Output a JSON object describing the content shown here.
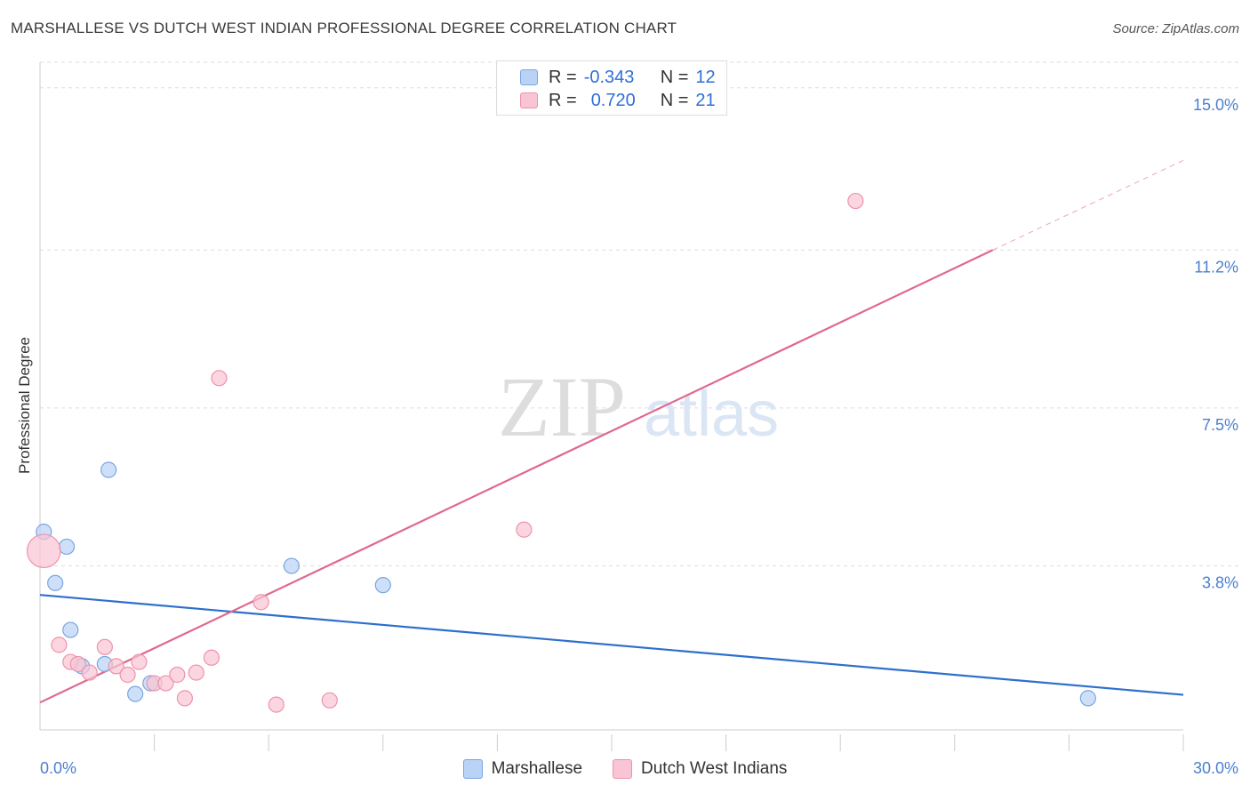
{
  "title": "MARSHALLESE VS DUTCH WEST INDIAN PROFESSIONAL DEGREE CORRELATION CHART",
  "source": "Source: ZipAtlas.com",
  "watermark": {
    "zip": "ZIP",
    "atlas": "atlas"
  },
  "colors": {
    "blue_fill": "#b9d3f6",
    "blue_stroke": "#7aa5e0",
    "blue_line": "#2e6fcc",
    "pink_fill": "#f9c4d3",
    "pink_stroke": "#ee92ad",
    "pink_line": "#e0688f",
    "tick_label": "#4a7fd0"
  },
  "legend_top": {
    "rows": [
      {
        "r_label": "R =",
        "r_value": "-0.343",
        "n_label": "N =",
        "n_value": "12"
      },
      {
        "r_label": "R =",
        "r_value": "0.720",
        "n_label": "N =",
        "n_value": "21"
      }
    ]
  },
  "chart_data": {
    "type": "scatter",
    "title": "MARSHALLESE VS DUTCH WEST INDIAN PROFESSIONAL DEGREE CORRELATION CHART",
    "xlabel": "",
    "ylabel": "Professional Degree",
    "xlim": [
      0,
      30
    ],
    "ylim": [
      0,
      15.6
    ],
    "x_tick_labels": [
      {
        "value": 0,
        "label": "0.0%"
      },
      {
        "value": 30,
        "label": "30.0%"
      }
    ],
    "y_tick_labels": [
      {
        "value": 3.8,
        "label": "3.8%"
      },
      {
        "value": 7.5,
        "label": "7.5%"
      },
      {
        "value": 11.2,
        "label": "11.2%"
      },
      {
        "value": 15.0,
        "label": "15.0%"
      }
    ],
    "series": [
      {
        "name": "Marshallese",
        "color": "blue",
        "points": [
          {
            "x": 0.1,
            "y": 4.6,
            "r": 1
          },
          {
            "x": 0.7,
            "y": 4.25,
            "r": 1
          },
          {
            "x": 0.4,
            "y": 3.4,
            "r": 1
          },
          {
            "x": 1.8,
            "y": 6.05,
            "r": 1
          },
          {
            "x": 0.8,
            "y": 2.3,
            "r": 1
          },
          {
            "x": 1.7,
            "y": 1.5,
            "r": 1
          },
          {
            "x": 1.1,
            "y": 1.45,
            "r": 1
          },
          {
            "x": 2.5,
            "y": 0.8,
            "r": 1
          },
          {
            "x": 2.9,
            "y": 1.05,
            "r": 1
          },
          {
            "x": 6.6,
            "y": 3.8,
            "r": 1
          },
          {
            "x": 9.0,
            "y": 3.35,
            "r": 1
          },
          {
            "x": 27.5,
            "y": 0.7,
            "r": 1
          }
        ],
        "trend": {
          "x0": 0,
          "y0": 3.12,
          "x1": 30,
          "y1": 0.78
        }
      },
      {
        "name": "Dutch West Indians",
        "color": "pink",
        "points": [
          {
            "x": 0.1,
            "y": 4.15,
            "r": 2.2
          },
          {
            "x": 0.5,
            "y": 1.95,
            "r": 1
          },
          {
            "x": 0.8,
            "y": 1.55,
            "r": 1
          },
          {
            "x": 1.0,
            "y": 1.5,
            "r": 1
          },
          {
            "x": 1.3,
            "y": 1.3,
            "r": 1
          },
          {
            "x": 1.7,
            "y": 1.9,
            "r": 1
          },
          {
            "x": 2.0,
            "y": 1.45,
            "r": 1
          },
          {
            "x": 2.3,
            "y": 1.25,
            "r": 1
          },
          {
            "x": 2.6,
            "y": 1.55,
            "r": 1
          },
          {
            "x": 3.0,
            "y": 1.05,
            "r": 1
          },
          {
            "x": 3.3,
            "y": 1.05,
            "r": 1
          },
          {
            "x": 3.6,
            "y": 1.25,
            "r": 1
          },
          {
            "x": 3.8,
            "y": 0.7,
            "r": 1
          },
          {
            "x": 4.1,
            "y": 1.3,
            "r": 1
          },
          {
            "x": 4.5,
            "y": 1.65,
            "r": 1
          },
          {
            "x": 4.7,
            "y": 8.2,
            "r": 1
          },
          {
            "x": 5.8,
            "y": 2.95,
            "r": 1
          },
          {
            "x": 6.2,
            "y": 0.55,
            "r": 1
          },
          {
            "x": 7.6,
            "y": 0.65,
            "r": 1
          },
          {
            "x": 12.7,
            "y": 4.65,
            "r": 1
          },
          {
            "x": 21.4,
            "y": 12.35,
            "r": 1
          }
        ],
        "trend": {
          "x0": 0,
          "y0": 0.6,
          "x1": 25.0,
          "y1": 11.2
        },
        "trend_dashed": {
          "x0": 25.0,
          "y0": 11.2,
          "x1": 30,
          "y1": 13.3
        }
      }
    ],
    "legend": [
      "Marshallese",
      "Dutch West Indians"
    ],
    "grid": true
  }
}
